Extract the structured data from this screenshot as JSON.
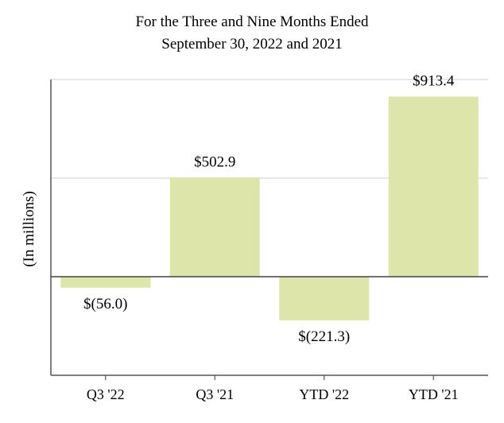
{
  "chart_data": {
    "type": "bar",
    "title": [
      "For the Three and Nine Months Ended",
      "September 30, 2022 and 2021"
    ],
    "xlabel": "",
    "ylabel": "(In millions)",
    "categories": [
      "Q3 '22",
      "Q3 '21",
      "YTD '22",
      "YTD '21"
    ],
    "values": [
      -56.0,
      502.9,
      -221.3,
      913.4
    ],
    "data_labels": [
      "$(56.0)",
      "$502.9",
      "$(221.3)",
      "$913.4"
    ],
    "ylim": [
      -500,
      1000
    ],
    "gridlines": [
      500,
      1000
    ],
    "grid": true,
    "legend": "none",
    "colors": {
      "bar": "#dde5ab",
      "grid": "#d9d9d9",
      "axis": "#555555",
      "zero": "#444444"
    }
  }
}
